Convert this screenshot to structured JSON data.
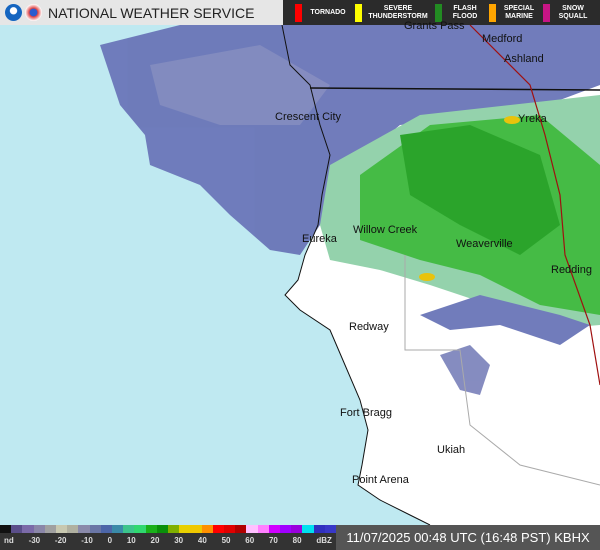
{
  "header": {
    "title": "NATIONAL WEATHER SERVICE",
    "warnings": [
      {
        "label": "TORNADO",
        "color": "#ff0000"
      },
      {
        "label": "SEVERE THUNDERSTORM",
        "color": "#ffff00"
      },
      {
        "label": "FLASH FLOOD",
        "color": "#228b22"
      },
      {
        "label": "SPECIAL MARINE",
        "color": "#ffa500"
      },
      {
        "label": "SNOW SQUALL",
        "color": "#c71585"
      }
    ]
  },
  "map": {
    "ocean_color": "#bfe9f1",
    "land_color": "#ffffff",
    "cities": [
      "Grants Pass",
      "Medford",
      "Ashland",
      "Crescent City",
      "Yreka",
      "Eureka",
      "Willow Creek",
      "Weaverville",
      "Redding",
      "Redway",
      "Fort Bragg",
      "Ukiah",
      "Point Arena"
    ]
  },
  "legend": {
    "ticks": [
      "nd",
      "-30",
      "-20",
      "-10",
      "0",
      "10",
      "20",
      "30",
      "40",
      "50",
      "60",
      "70",
      "80",
      "dBZ"
    ],
    "colors": [
      "#111",
      "#5a4e8a",
      "#7b6aa8",
      "#8a86a8",
      "#a0a0a0",
      "#c8c8b0",
      "#b0b0a0",
      "#8a8aaa",
      "#6a76a6",
      "#4c66a8",
      "#3a8aa8",
      "#3cc48c",
      "#30d870",
      "#1ab01a",
      "#0a900a",
      "#80b000",
      "#e8d000",
      "#f0c800",
      "#ff9000",
      "#ff0000",
      "#e00000",
      "#b00000",
      "#ffc0ff",
      "#ff80ff",
      "#d000ff",
      "#a000ff",
      "#9900dd",
      "#00e0f0",
      "#3030c0",
      "#3838c8"
    ]
  },
  "timestamp": "11/07/2025 00:48 UTC (16:48 PST) KBHX"
}
